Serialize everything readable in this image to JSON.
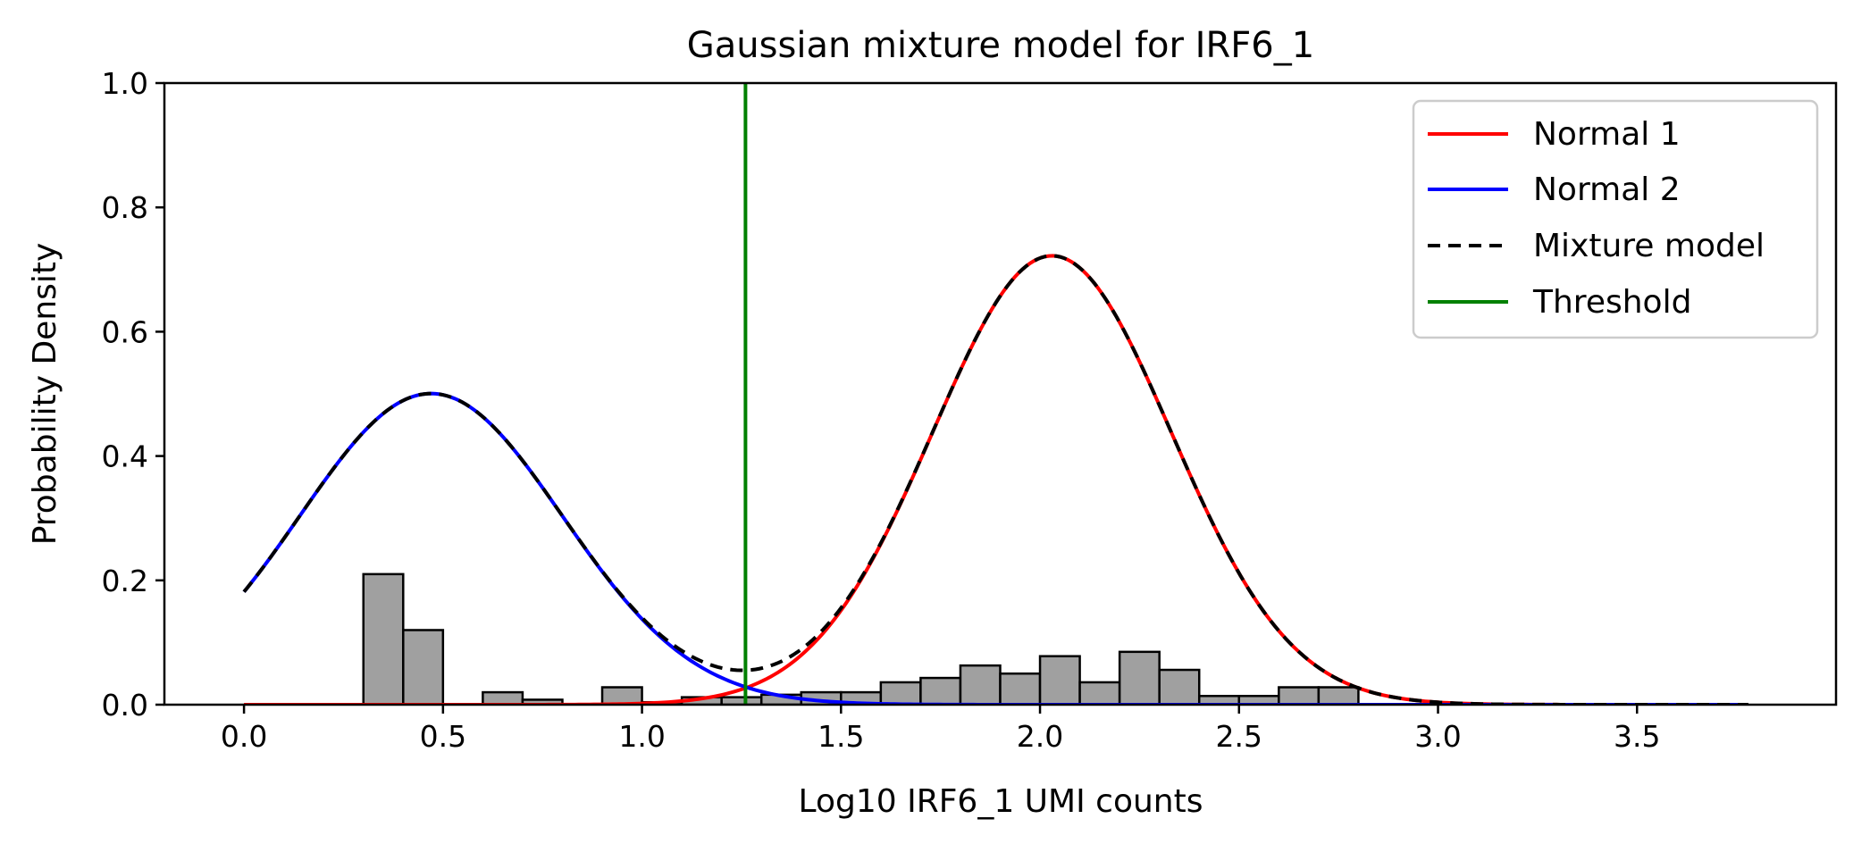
{
  "chart_data": {
    "type": "histogram+line",
    "title": "Gaussian mixture model for IRF6_1",
    "xlabel": "Log10 IRF6_1 UMI counts",
    "ylabel": "Probability Density",
    "xlim": [
      -0.2,
      4.0
    ],
    "ylim": [
      0.0,
      1.0
    ],
    "xticks": [
      0.0,
      0.5,
      1.0,
      1.5,
      2.0,
      2.5,
      3.0,
      3.5
    ],
    "xtick_labels": [
      "0.0",
      "0.5",
      "1.0",
      "1.5",
      "2.0",
      "2.5",
      "3.0",
      "3.5"
    ],
    "yticks": [
      0.0,
      0.2,
      0.4,
      0.6,
      0.8,
      1.0
    ],
    "ytick_labels": [
      "0.0",
      "0.2",
      "0.4",
      "0.6",
      "0.8",
      "1.0"
    ],
    "histogram": {
      "bin_width": 0.1,
      "bins": [
        {
          "x0": 0.3,
          "height": 0.21
        },
        {
          "x0": 0.4,
          "height": 0.12
        },
        {
          "x0": 0.6,
          "height": 0.02
        },
        {
          "x0": 0.7,
          "height": 0.008
        },
        {
          "x0": 0.9,
          "height": 0.028
        },
        {
          "x0": 1.0,
          "height": 0.004
        },
        {
          "x0": 1.1,
          "height": 0.012
        },
        {
          "x0": 1.2,
          "height": 0.012
        },
        {
          "x0": 1.3,
          "height": 0.016
        },
        {
          "x0": 1.4,
          "height": 0.02
        },
        {
          "x0": 1.5,
          "height": 0.02
        },
        {
          "x0": 1.6,
          "height": 0.036
        },
        {
          "x0": 1.7,
          "height": 0.043
        },
        {
          "x0": 1.8,
          "height": 0.063
        },
        {
          "x0": 1.9,
          "height": 0.05
        },
        {
          "x0": 2.0,
          "height": 0.078
        },
        {
          "x0": 2.1,
          "height": 0.036
        },
        {
          "x0": 2.2,
          "height": 0.085
        },
        {
          "x0": 2.3,
          "height": 0.056
        },
        {
          "x0": 2.4,
          "height": 0.014
        },
        {
          "x0": 2.5,
          "height": 0.014
        },
        {
          "x0": 2.6,
          "height": 0.028
        },
        {
          "x0": 2.7,
          "height": 0.028
        }
      ],
      "fill": "#a0a0a0",
      "edge": "#000000"
    },
    "series": [
      {
        "name": "Normal 1",
        "color": "#ff0000",
        "style": "solid",
        "kind": "gaussian",
        "mean": 2.03,
        "sd": 0.3,
        "weight": 0.543
      },
      {
        "name": "Normal 2",
        "color": "#0000ff",
        "style": "solid",
        "kind": "gaussian",
        "mean": 0.47,
        "sd": 0.33,
        "weight": 0.414
      },
      {
        "name": "Mixture model",
        "color": "#000000",
        "style": "dashed",
        "kind": "sum"
      }
    ],
    "curve_domain": [
      0.0,
      3.78
    ],
    "threshold": {
      "name": "Threshold",
      "x": 1.26,
      "color": "#008000"
    },
    "legend": {
      "placement": "top-right",
      "entries": [
        {
          "label": "Normal 1",
          "color": "#ff0000",
          "style": "solid"
        },
        {
          "label": "Normal 2",
          "color": "#0000ff",
          "style": "solid"
        },
        {
          "label": "Mixture model",
          "color": "#000000",
          "style": "dashed"
        },
        {
          "label": "Threshold",
          "color": "#008000",
          "style": "solid"
        }
      ]
    },
    "grid": false
  }
}
